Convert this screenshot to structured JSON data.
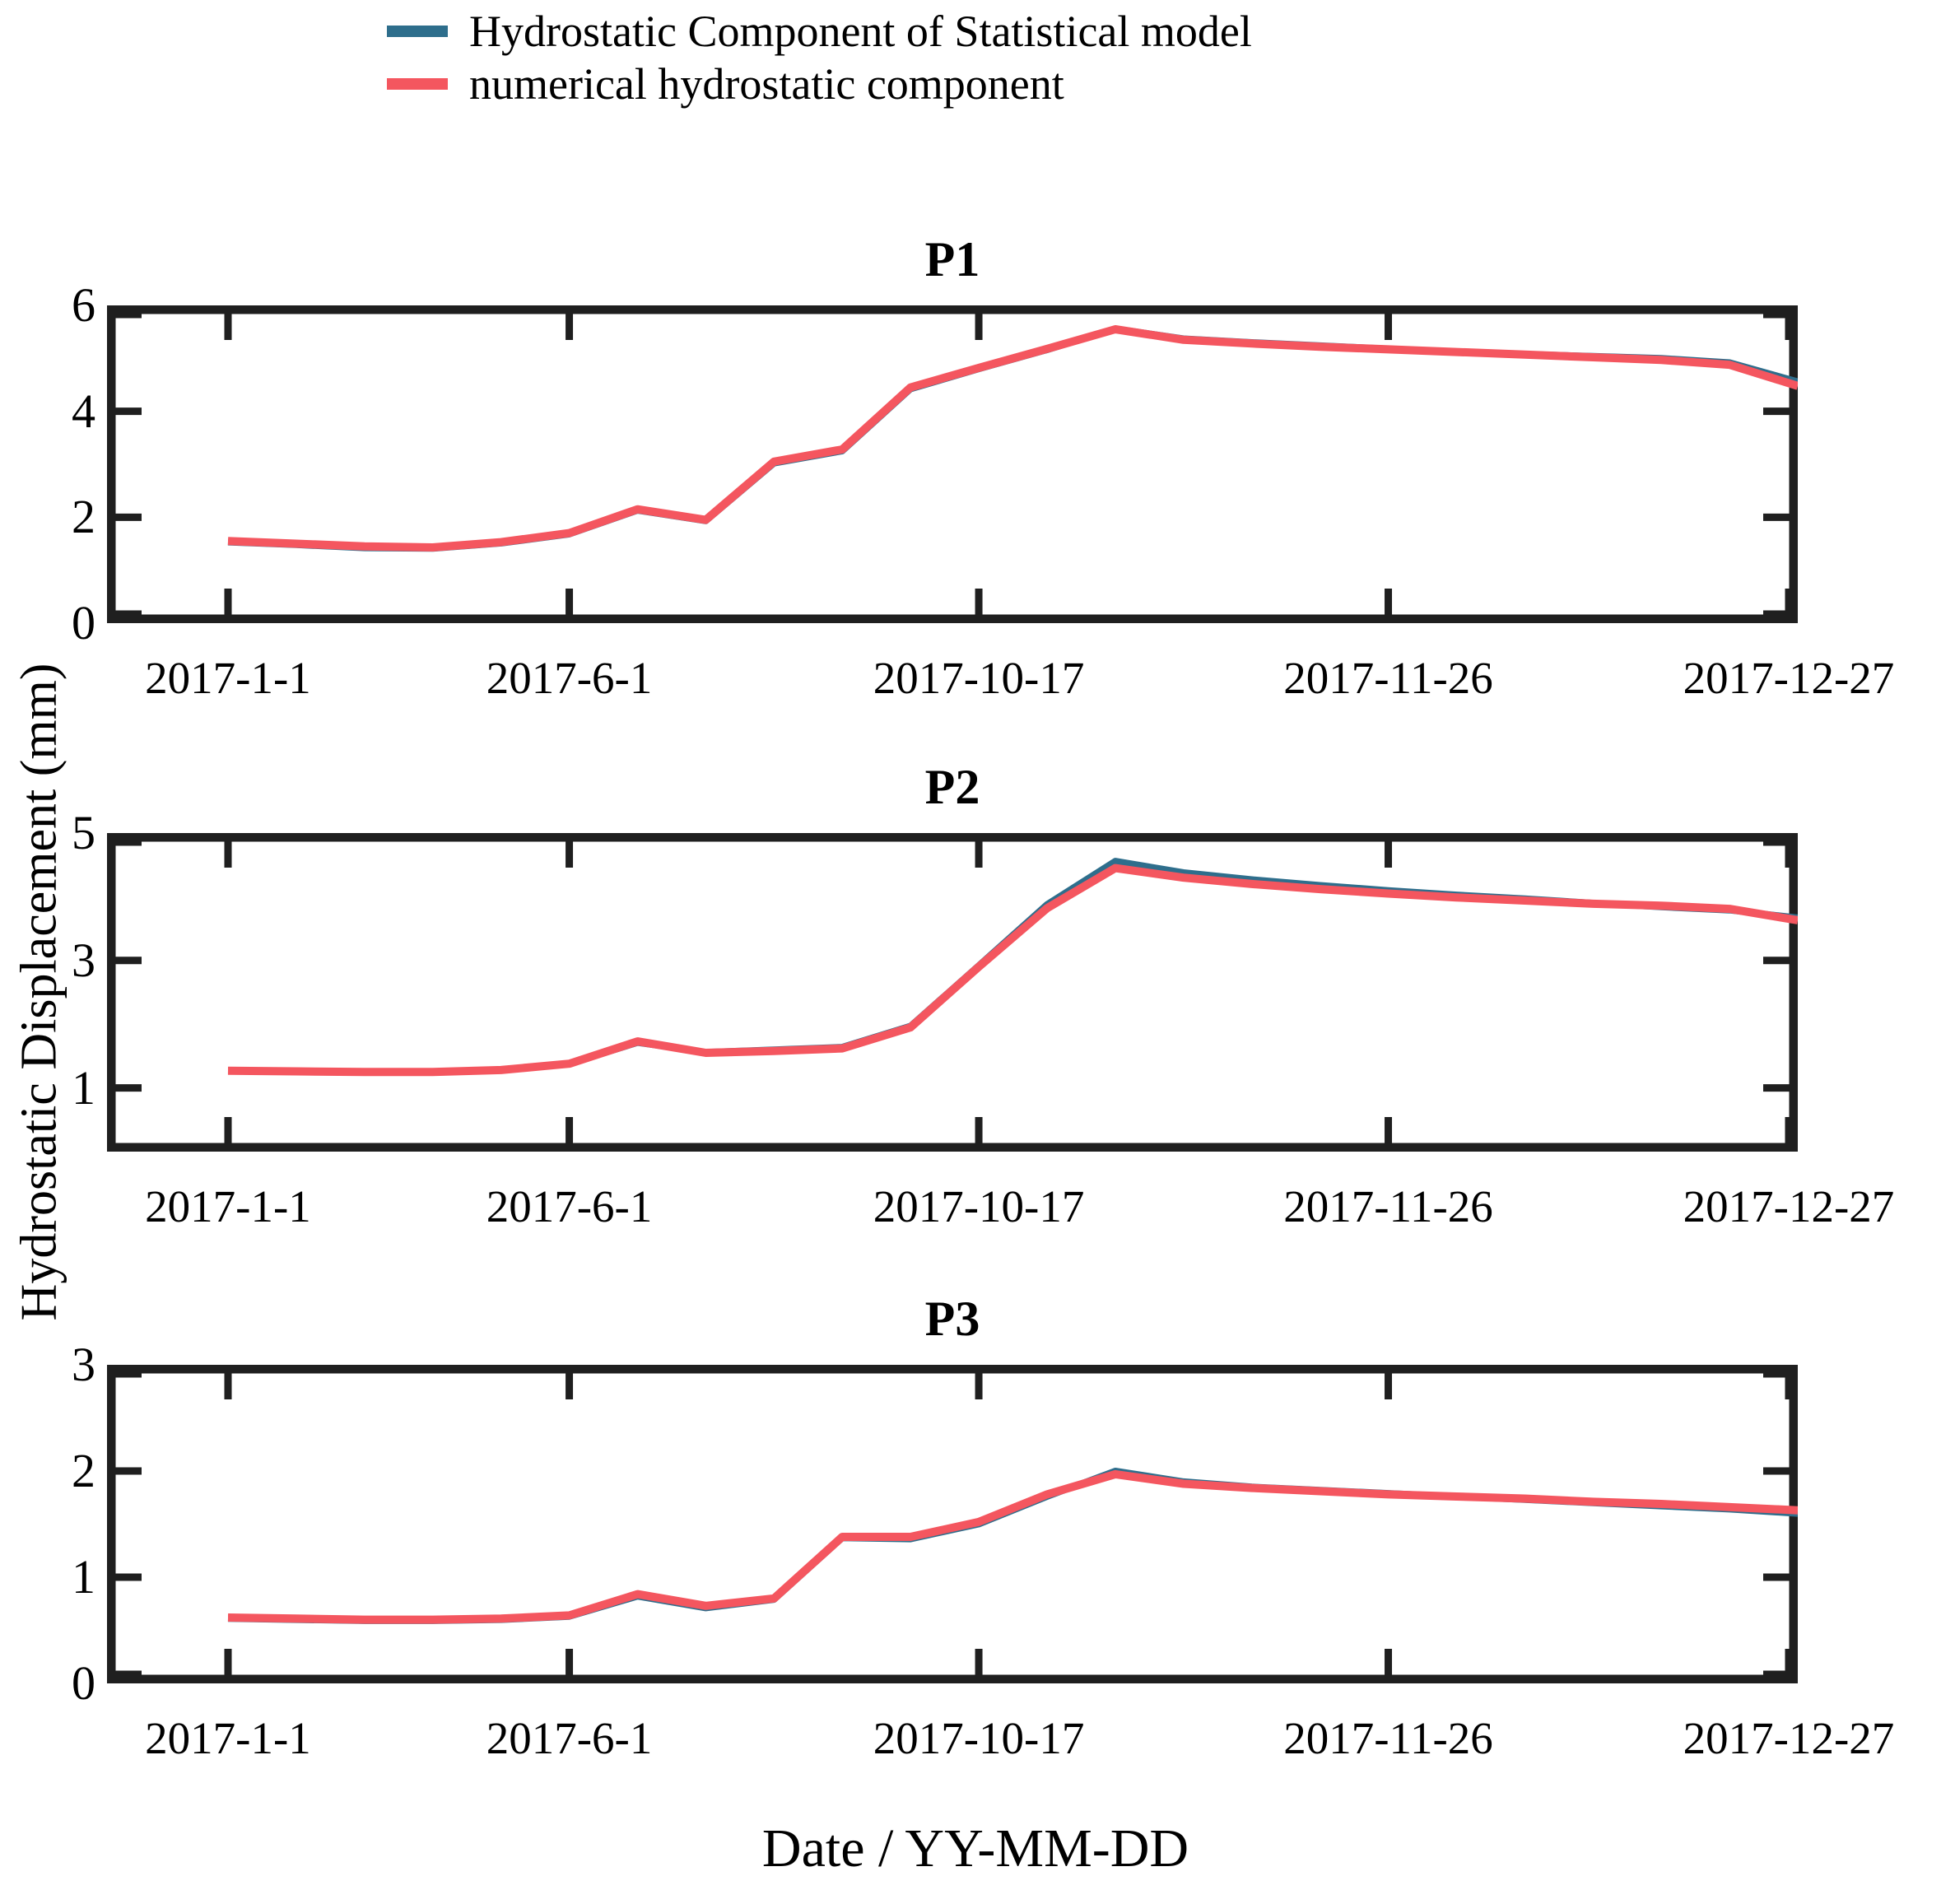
{
  "figure": {
    "xlabel": "Date / YY-MM-DD",
    "ylabel": "Hydrostatic Displacement (mm)",
    "axis_color": "#1f1f1f",
    "text_color": "#000000"
  },
  "legend": {
    "items": [
      {
        "label": "Hydrostatic Component of Statistical model",
        "color": "#2E6E8C"
      },
      {
        "label": "numerical hydrostatic component",
        "color": "#F4565F"
      }
    ]
  },
  "chart_data": [
    {
      "type": "line",
      "title": "P1",
      "ylim": [
        0,
        6
      ],
      "yticks": [
        0,
        2,
        4,
        6
      ],
      "xtick_labels": [
        "2017-1-1",
        "2017-6-1",
        "2017-10-17",
        "2017-11-26",
        "2017-12-27"
      ],
      "xtick_indices": [
        0,
        5,
        11,
        17,
        23
      ],
      "grid": false,
      "legend_position": "above-figure",
      "series": [
        {
          "name": "Hydrostatic Component of Statistical model",
          "color": "#2E6E8C",
          "values": [
            1.53,
            1.48,
            1.42,
            1.41,
            1.51,
            1.68,
            2.13,
            1.93,
            3.02,
            3.25,
            4.42,
            4.8,
            5.16,
            5.56,
            5.37,
            5.3,
            5.24,
            5.18,
            5.13,
            5.08,
            5.04,
            5.0,
            4.92,
            4.56
          ]
        },
        {
          "name": "numerical hydrostatic component",
          "color": "#F4565F",
          "values": [
            1.55,
            1.5,
            1.45,
            1.43,
            1.53,
            1.7,
            2.15,
            1.95,
            3.05,
            3.28,
            4.45,
            4.82,
            5.18,
            5.55,
            5.35,
            5.28,
            5.22,
            5.17,
            5.12,
            5.07,
            5.02,
            4.97,
            4.88,
            4.48
          ]
        }
      ]
    },
    {
      "type": "line",
      "title": "P2",
      "ylim": [
        0,
        5
      ],
      "yticks": [
        1,
        3,
        5
      ],
      "xtick_labels": [
        "2017-1-1",
        "2017-6-1",
        "2017-10-17",
        "2017-11-26",
        "2017-12-27"
      ],
      "xtick_indices": [
        0,
        5,
        11,
        17,
        23
      ],
      "grid": false,
      "series": [
        {
          "name": "Hydrostatic Component of Statistical model",
          "color": "#2E6E8C",
          "values": [
            1.27,
            1.26,
            1.25,
            1.25,
            1.28,
            1.38,
            1.71,
            1.56,
            1.6,
            1.64,
            1.97,
            2.92,
            3.88,
            4.56,
            4.38,
            4.27,
            4.18,
            4.1,
            4.03,
            3.97,
            3.9,
            3.84,
            3.79,
            3.67
          ]
        },
        {
          "name": "numerical hydrostatic component",
          "color": "#F4565F",
          "values": [
            1.27,
            1.26,
            1.25,
            1.25,
            1.28,
            1.38,
            1.73,
            1.55,
            1.58,
            1.62,
            1.95,
            2.9,
            3.82,
            4.45,
            4.3,
            4.2,
            4.12,
            4.05,
            3.99,
            3.94,
            3.89,
            3.86,
            3.81,
            3.63
          ]
        }
      ]
    },
    {
      "type": "line",
      "title": "P3",
      "ylim": [
        0,
        3
      ],
      "yticks": [
        0,
        1,
        2,
        3
      ],
      "xtick_labels": [
        "2017-1-1",
        "2017-6-1",
        "2017-10-17",
        "2017-11-26",
        "2017-12-27"
      ],
      "xtick_indices": [
        0,
        5,
        11,
        17,
        23
      ],
      "grid": false,
      "series": [
        {
          "name": "Hydrostatic Component of Statistical model",
          "color": "#2E6E8C",
          "values": [
            0.61,
            0.6,
            0.59,
            0.59,
            0.6,
            0.63,
            0.82,
            0.71,
            0.79,
            1.37,
            1.36,
            1.5,
            1.76,
            2.0,
            1.9,
            1.85,
            1.82,
            1.79,
            1.76,
            1.73,
            1.7,
            1.67,
            1.64,
            1.6
          ]
        },
        {
          "name": "numerical hydrostatic component",
          "color": "#F4565F",
          "values": [
            0.62,
            0.61,
            0.6,
            0.6,
            0.61,
            0.64,
            0.84,
            0.73,
            0.8,
            1.38,
            1.38,
            1.52,
            1.78,
            1.97,
            1.88,
            1.84,
            1.81,
            1.78,
            1.76,
            1.74,
            1.71,
            1.69,
            1.66,
            1.63
          ]
        }
      ]
    }
  ]
}
